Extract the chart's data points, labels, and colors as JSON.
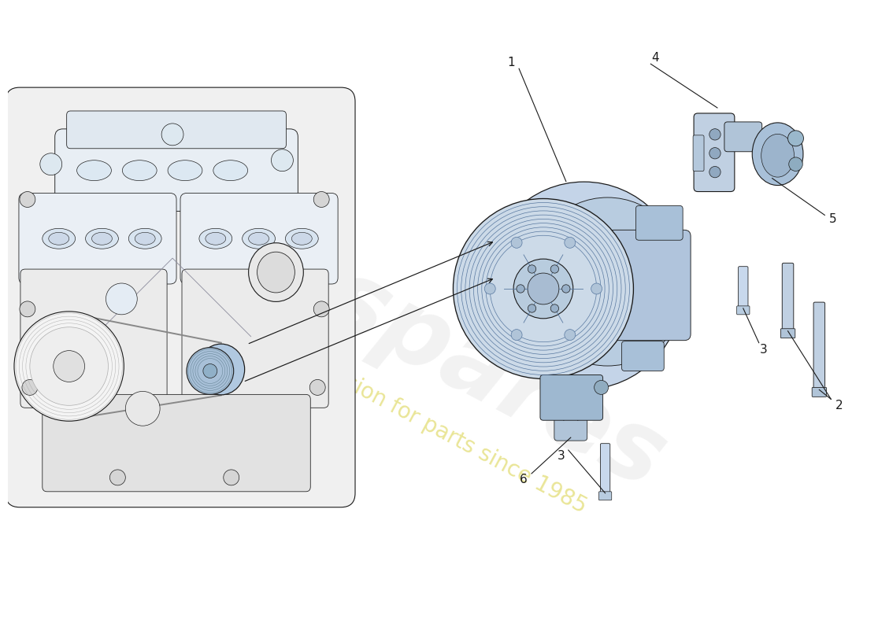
{
  "bg_color": "#ffffff",
  "watermark_text1": "eurospares",
  "watermark_text2": "a passion for parts since 1985",
  "wm_gray": "#cccccc",
  "wm_yellow": "#d8d040",
  "line_color": "#1a1a1a",
  "engine_fill": "#f2f2f2",
  "comp_fill": "#b8cce0",
  "label_fs": 11
}
